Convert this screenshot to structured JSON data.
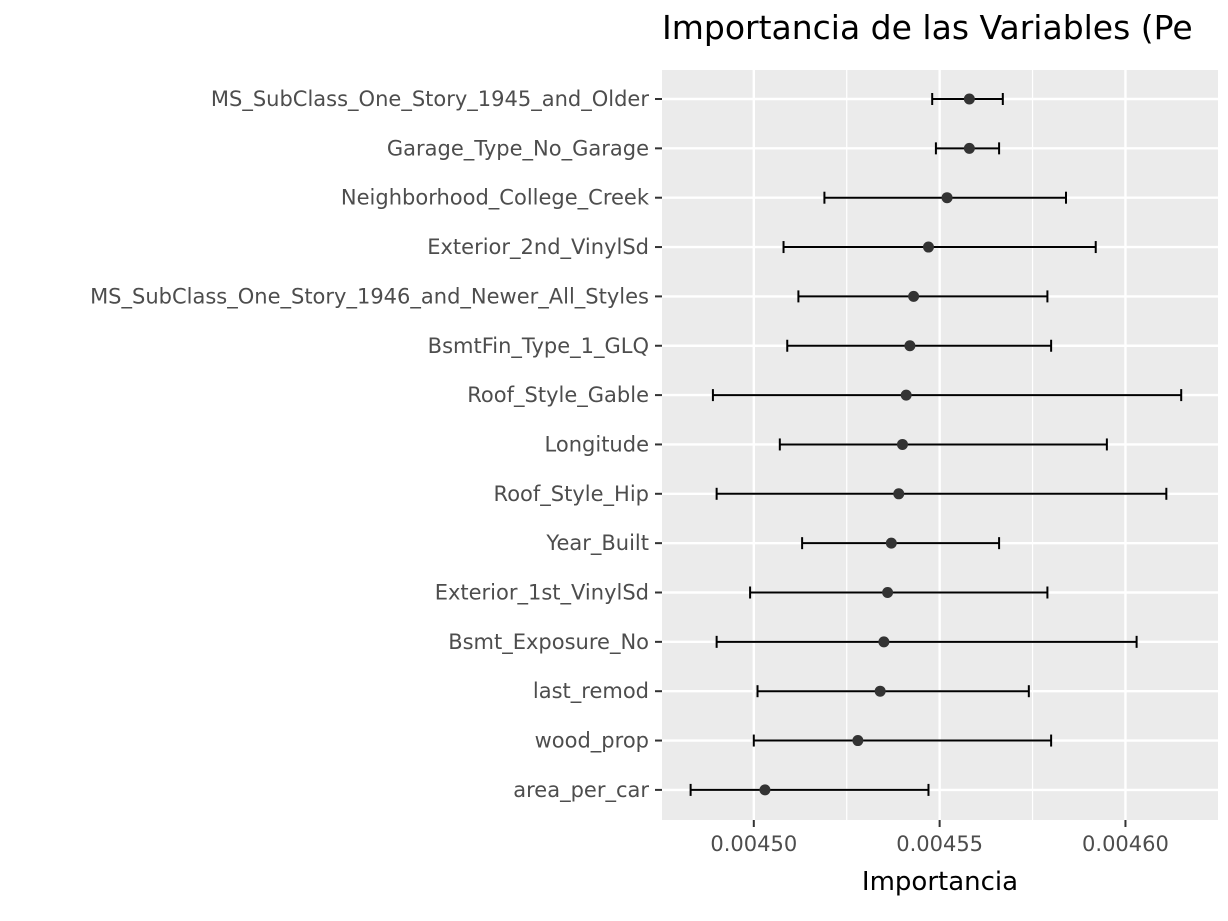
{
  "chart_data": {
    "type": "scatter",
    "title": "Importancia de las Variables (Pe",
    "xlabel": "Importancia",
    "ylabel": "",
    "xlim": [
      0.0044753,
      0.0046249
    ],
    "xticks": [
      0.0045,
      0.00455,
      0.0046
    ],
    "xtick_labels": [
      "0.00450",
      "0.00455",
      "0.00460"
    ],
    "grid": true,
    "legend": "none",
    "colors": {
      "panel": "#ebebeb",
      "grid": "#ffffff",
      "point": "#333333",
      "errorbar": "#000000",
      "tick": "#333333"
    },
    "series": [
      {
        "categories": [
          "MS_SubClass_One_Story_1945_and_Older",
          "Garage_Type_No_Garage",
          "Neighborhood_College_Creek",
          "Exterior_2nd_VinylSd",
          "MS_SubClass_One_Story_1946_and_Newer_All_Styles",
          "BsmtFin_Type_1_GLQ",
          "Roof_Style_Gable",
          "Longitude",
          "Roof_Style_Hip",
          "Year_Built",
          "Exterior_1st_VinylSd",
          "Bsmt_Exposure_No",
          "last_remod",
          "wood_prop",
          "area_per_car"
        ],
        "values": [
          0.004558,
          0.004558,
          0.004552,
          0.004547,
          0.004543,
          0.004542,
          0.004541,
          0.00454,
          0.004539,
          0.004537,
          0.004536,
          0.004535,
          0.004534,
          0.004528,
          0.004503
        ],
        "lower": [
          0.004548,
          0.004549,
          0.004519,
          0.004508,
          0.004512,
          0.004509,
          0.004489,
          0.004507,
          0.00449,
          0.004513,
          0.004499,
          0.00449,
          0.004501,
          0.0045,
          0.004483
        ],
        "upper": [
          0.004567,
          0.004566,
          0.004584,
          0.004592,
          0.004579,
          0.00458,
          0.004615,
          0.004595,
          0.004611,
          0.004566,
          0.004579,
          0.004603,
          0.004574,
          0.00458,
          0.004547
        ]
      }
    ]
  }
}
